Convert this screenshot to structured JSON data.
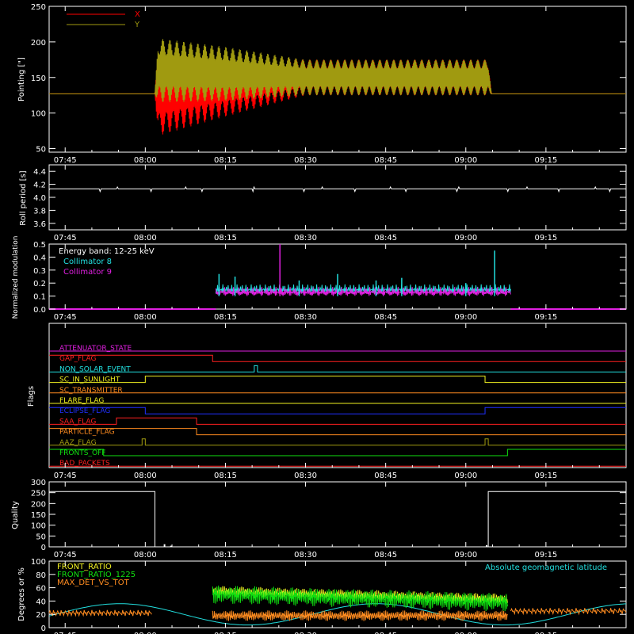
{
  "colors": {
    "background": "#000000",
    "axis": "#ffffff",
    "x_pointing": "#ff0000",
    "y_pointing": "#a09a10",
    "cyan": "#22e0e0",
    "magenta": "#e020e0",
    "green": "#10e010",
    "yellow": "#f0f020",
    "orange": "#ff8c20"
  },
  "time_ticks": [
    "07:45",
    "08:00",
    "08:15",
    "08:30",
    "08:45",
    "09:00",
    "09:15"
  ],
  "chart_data": [
    {
      "id": "pointing",
      "type": "line",
      "ylabel": "Pointing [\"]",
      "ylim": [
        45,
        250
      ],
      "yticks": [
        50,
        100,
        150,
        200,
        250
      ],
      "xlim_hours": [
        7.7,
        9.5
      ],
      "legend": [
        "X",
        "Y"
      ],
      "series": [
        {
          "name": "X",
          "color": "#ff0000",
          "baseline": 127,
          "segments": [
            {
              "t": 7.7,
              "center": 127,
              "amp": 0
            },
            {
              "t": 8.03,
              "center": 127,
              "amp": 0
            },
            {
              "t": 8.04,
              "center": 130,
              "amp": 62
            },
            {
              "t": 8.25,
              "center": 140,
              "amp": 45
            },
            {
              "t": 8.5,
              "center": 150,
              "amp": 25
            },
            {
              "t": 9.07,
              "center": 150,
              "amp": 25
            },
            {
              "t": 9.08,
              "center": 127,
              "amp": 0
            },
            {
              "t": 9.5,
              "center": 127,
              "amp": 0
            }
          ]
        },
        {
          "name": "Y",
          "color": "#a09a10",
          "baseline": 127,
          "segments": [
            {
              "t": 7.7,
              "center": 127,
              "amp": 0
            },
            {
              "t": 8.03,
              "center": 127,
              "amp": 0
            },
            {
              "t": 8.04,
              "center": 160,
              "amp": 45
            },
            {
              "t": 8.25,
              "center": 155,
              "amp": 38
            },
            {
              "t": 8.5,
              "center": 150,
              "amp": 25
            },
            {
              "t": 9.07,
              "center": 150,
              "amp": 25
            },
            {
              "t": 9.08,
              "center": 127,
              "amp": 0
            },
            {
              "t": 9.5,
              "center": 127,
              "amp": 0
            }
          ]
        }
      ]
    },
    {
      "id": "roll",
      "type": "line",
      "ylabel": "Roll period [s]",
      "ylim": [
        3.5,
        4.5
      ],
      "yticks": [
        3.6,
        3.8,
        4.0,
        4.2,
        4.4
      ],
      "value": 4.13
    },
    {
      "id": "modulation",
      "type": "line",
      "ylabel": "Normalized modulation",
      "ylim": [
        0,
        0.5
      ],
      "yticks": [
        0.0,
        0.1,
        0.2,
        0.3,
        0.4,
        0.5
      ],
      "annotation": "Energy band: 12-25 keV",
      "active_range": [
        8.22,
        9.14
      ],
      "series": [
        {
          "name": "Collimator 8",
          "color": "#22e0e0",
          "level": 0.12
        },
        {
          "name": "Collimator 9",
          "color": "#e020e0",
          "level": 0.1
        }
      ],
      "spikes": [
        {
          "t": 8.23,
          "v": 0.27,
          "c": "#22e0e0"
        },
        {
          "t": 8.28,
          "v": 0.25,
          "c": "#22e0e0"
        },
        {
          "t": 8.42,
          "v": 0.5,
          "c": "#e020e0"
        },
        {
          "t": 8.48,
          "v": 0.22,
          "c": "#22e0e0"
        },
        {
          "t": 8.6,
          "v": 0.27,
          "c": "#22e0e0"
        },
        {
          "t": 8.72,
          "v": 0.22,
          "c": "#22e0e0"
        },
        {
          "t": 8.8,
          "v": 0.24,
          "c": "#22e0e0"
        },
        {
          "t": 9.09,
          "v": 0.45,
          "c": "#22e0e0"
        },
        {
          "t": 9.0,
          "v": 0.2,
          "c": "#22e0e0"
        }
      ]
    },
    {
      "id": "flags",
      "type": "line",
      "ylabel": "Flags",
      "flags": [
        {
          "name": "ATTENUATOR_STATE",
          "color": "#e020e0",
          "steps": [
            [
              7.7,
              0
            ]
          ]
        },
        {
          "name": "GAP_FLAG",
          "color": "#ff2020",
          "steps": [
            [
              7.7,
              1
            ],
            [
              8.21,
              0
            ]
          ]
        },
        {
          "name": "NON_SOLAR_EVENT",
          "color": "#22e0e0",
          "steps": [
            [
              7.7,
              0
            ],
            [
              8.34,
              1
            ],
            [
              8.35,
              0
            ]
          ]
        },
        {
          "name": "SC_IN_SUNLIGHT",
          "color": "#f0f020",
          "steps": [
            [
              7.7,
              0
            ],
            [
              8.0,
              1
            ],
            [
              9.06,
              0
            ]
          ]
        },
        {
          "name": "SC_TRANSMITTER",
          "color": "#ff8c20",
          "steps": [
            [
              7.7,
              0
            ]
          ]
        },
        {
          "name": "FLARE_FLAG",
          "color": "#f0f020",
          "steps": [
            [
              7.7,
              0
            ]
          ]
        },
        {
          "name": "ECLIPSE_FLAG",
          "color": "#2030ff",
          "steps": [
            [
              7.7,
              1
            ],
            [
              8.0,
              0
            ],
            [
              9.06,
              1
            ]
          ]
        },
        {
          "name": "SAA_FLAG",
          "color": "#ff2020",
          "steps": [
            [
              7.7,
              0
            ],
            [
              7.91,
              1
            ],
            [
              8.16,
              0
            ]
          ]
        },
        {
          "name": "PARTICLE_FLAG",
          "color": "#ff8c20",
          "steps": [
            [
              7.7,
              1
            ],
            [
              8.16,
              0
            ]
          ]
        },
        {
          "name": "AAZ_FLAG",
          "color": "#a09a10",
          "steps": [
            [
              7.7,
              0
            ],
            [
              7.99,
              1
            ],
            [
              8.0,
              0
            ],
            [
              9.06,
              1
            ],
            [
              9.07,
              0
            ]
          ]
        },
        {
          "name": "FRONTS_OFF",
          "color": "#10e010",
          "steps": [
            [
              7.7,
              1
            ],
            [
              7.87,
              0
            ],
            [
              9.13,
              1
            ]
          ]
        },
        {
          "name": "BAD_PACKETS",
          "color": "#ff2020",
          "steps": [
            [
              7.7,
              0
            ]
          ]
        }
      ]
    },
    {
      "id": "quality",
      "type": "line",
      "ylabel": "Quality",
      "ylim": [
        0,
        300
      ],
      "yticks": [
        0,
        50,
        100,
        150,
        200,
        250,
        300
      ],
      "steps": [
        [
          7.7,
          255
        ],
        [
          8.03,
          0
        ],
        [
          9.07,
          255
        ],
        [
          9.5,
          255
        ]
      ],
      "blips": [
        [
          8.06,
          12
        ],
        [
          8.08,
          5
        ],
        [
          9.065,
          8
        ]
      ]
    },
    {
      "id": "ratios",
      "type": "line",
      "ylabel": "Degrees or %",
      "ylim": [
        0,
        100
      ],
      "yticks": [
        0,
        20,
        40,
        60,
        80,
        100
      ],
      "right_label": "Absolute geomagnetic latitude",
      "series": [
        {
          "name": "FRONT_RATIO",
          "color": "#f0f020"
        },
        {
          "name": "FRONT_RATIO_1225",
          "color": "#10e010"
        },
        {
          "name": "MAX_DET_VS_TOT",
          "color": "#ff8c20"
        }
      ]
    }
  ]
}
